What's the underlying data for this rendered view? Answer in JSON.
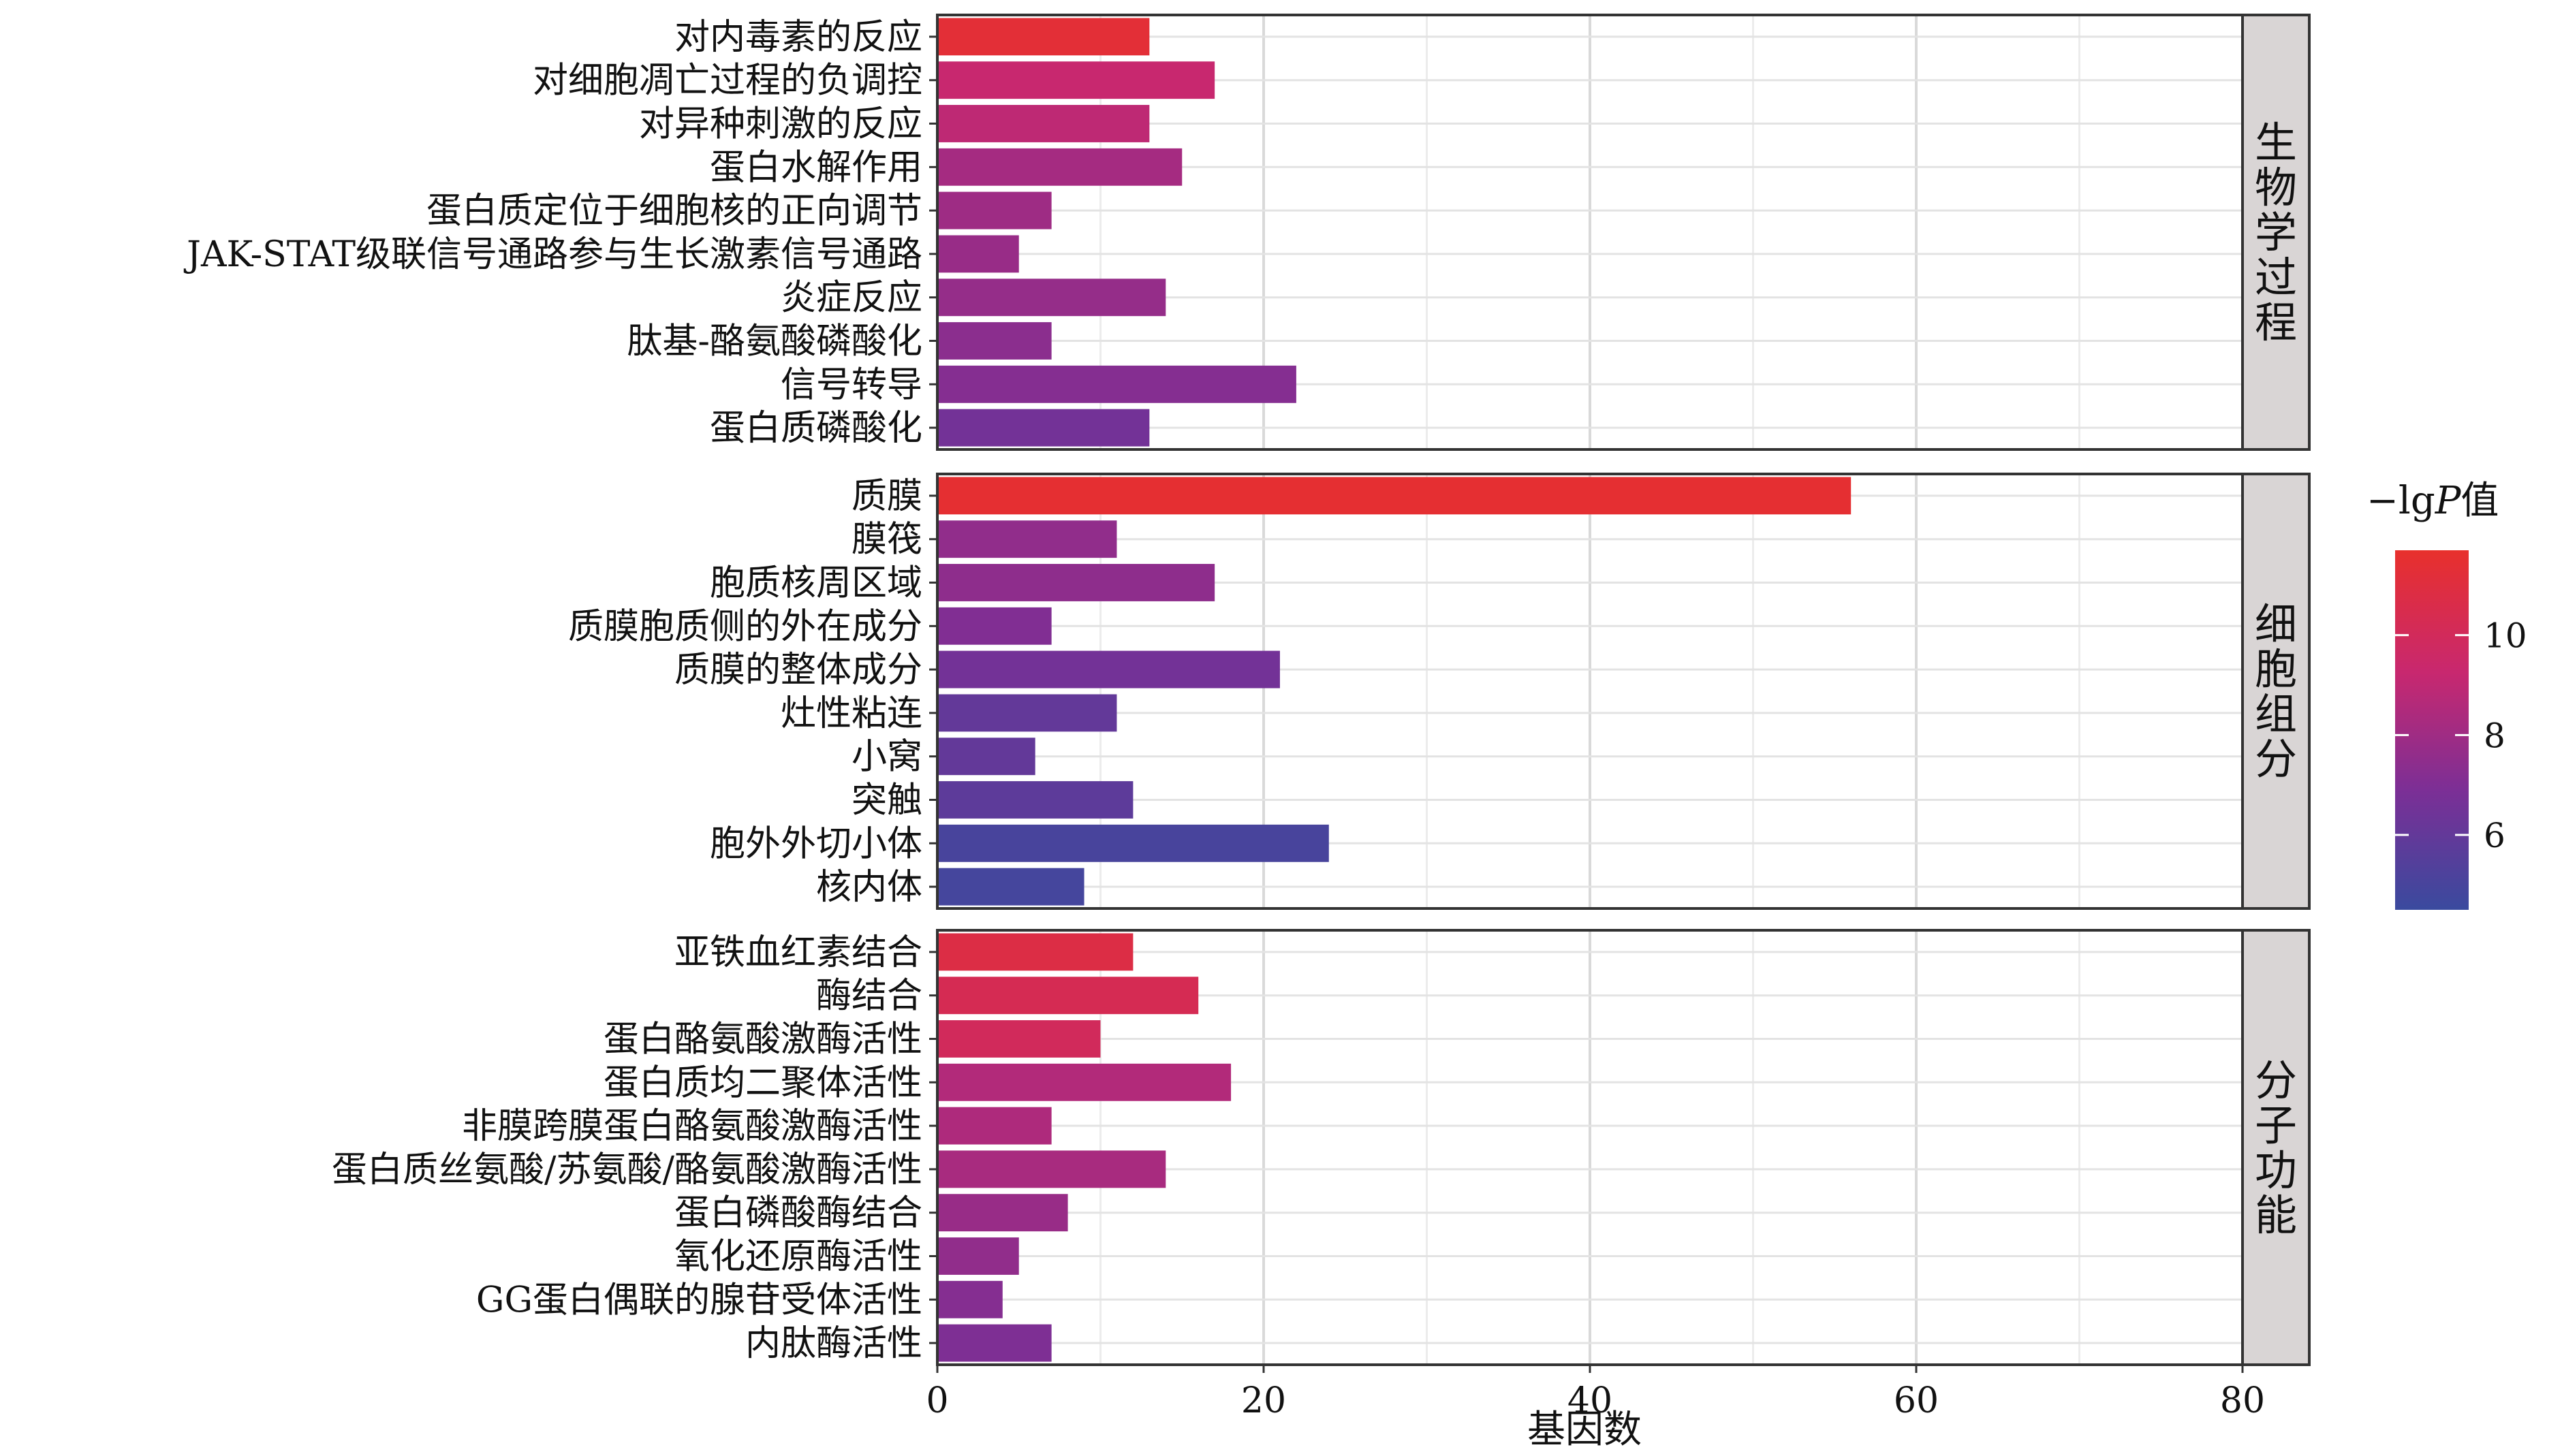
{
  "chart_data": {
    "type": "bar",
    "orientation": "horizontal",
    "xlabel": "基因数",
    "xlim": [
      0,
      80
    ],
    "xticks": [
      0,
      20,
      40,
      60,
      80
    ],
    "grid": true,
    "legend": {
      "title_prefix": "−lg",
      "title_italic": "P",
      "title_suffix": "值",
      "ticks": [
        6,
        8,
        10
      ],
      "range": [
        4.5,
        11.7
      ],
      "position": "right",
      "colors": [
        "#3a4a9e",
        "#7b2f96",
        "#c8286f",
        "#e8302c"
      ]
    },
    "panels": [
      {
        "facet": "生物学过程",
        "bars": [
          {
            "term": "对内毒素的反应",
            "count": 13,
            "neglogp": 11.3
          },
          {
            "term": "对细胞凋亡过程的负调控",
            "count": 17,
            "neglogp": 9.3
          },
          {
            "term": "对异种刺激的反应",
            "count": 13,
            "neglogp": 9.0
          },
          {
            "term": "蛋白水解作用",
            "count": 15,
            "neglogp": 8.2
          },
          {
            "term": "蛋白质定位于细胞核的正向调节",
            "count": 7,
            "neglogp": 8.0
          },
          {
            "term": "JAK-STAT级联信号通路参与生长激素信号通路",
            "count": 5,
            "neglogp": 7.8
          },
          {
            "term": "炎症反应",
            "count": 14,
            "neglogp": 7.7
          },
          {
            "term": "肽基-酪氨酸磷酸化",
            "count": 7,
            "neglogp": 7.4
          },
          {
            "term": "信号转导",
            "count": 22,
            "neglogp": 7.2
          },
          {
            "term": "蛋白质磷酸化",
            "count": 13,
            "neglogp": 6.6
          }
        ]
      },
      {
        "facet": "细胞组分",
        "bars": [
          {
            "term": "质膜",
            "count": 56,
            "neglogp": 11.5
          },
          {
            "term": "膜筏",
            "count": 11,
            "neglogp": 7.6
          },
          {
            "term": "胞质核周区域",
            "count": 17,
            "neglogp": 7.5
          },
          {
            "term": "质膜胞质侧的外在成分",
            "count": 7,
            "neglogp": 7.1
          },
          {
            "term": "质膜的整体成分",
            "count": 21,
            "neglogp": 6.6
          },
          {
            "term": "灶性粘连",
            "count": 11,
            "neglogp": 6.0
          },
          {
            "term": "小窝",
            "count": 6,
            "neglogp": 6.0
          },
          {
            "term": "突触",
            "count": 12,
            "neglogp": 5.8
          },
          {
            "term": "胞外外切小体",
            "count": 24,
            "neglogp": 5.0
          },
          {
            "term": "核内体",
            "count": 9,
            "neglogp": 4.9
          }
        ]
      },
      {
        "facet": "分子功能",
        "bars": [
          {
            "term": "亚铁血红素结合",
            "count": 12,
            "neglogp": 10.8
          },
          {
            "term": "酶结合",
            "count": 16,
            "neglogp": 10.3
          },
          {
            "term": "蛋白酪氨酸激酶活性",
            "count": 10,
            "neglogp": 10.0
          },
          {
            "term": "蛋白质均二聚体活性",
            "count": 18,
            "neglogp": 8.6
          },
          {
            "term": "非膜跨膜蛋白酪氨酸激酶活性",
            "count": 7,
            "neglogp": 8.5
          },
          {
            "term": "蛋白质丝氨酸/苏氨酸/酪氨酸激酶活性",
            "count": 14,
            "neglogp": 8.3
          },
          {
            "term": "蛋白磷酸酶结合",
            "count": 8,
            "neglogp": 7.8
          },
          {
            "term": "氧化还原酶活性",
            "count": 5,
            "neglogp": 7.6
          },
          {
            "term": "GG蛋白偶联的腺苷受体活性",
            "count": 4,
            "neglogp": 7.2
          },
          {
            "term": "内肽酶活性",
            "count": 7,
            "neglogp": 7.0
          }
        ]
      }
    ]
  }
}
